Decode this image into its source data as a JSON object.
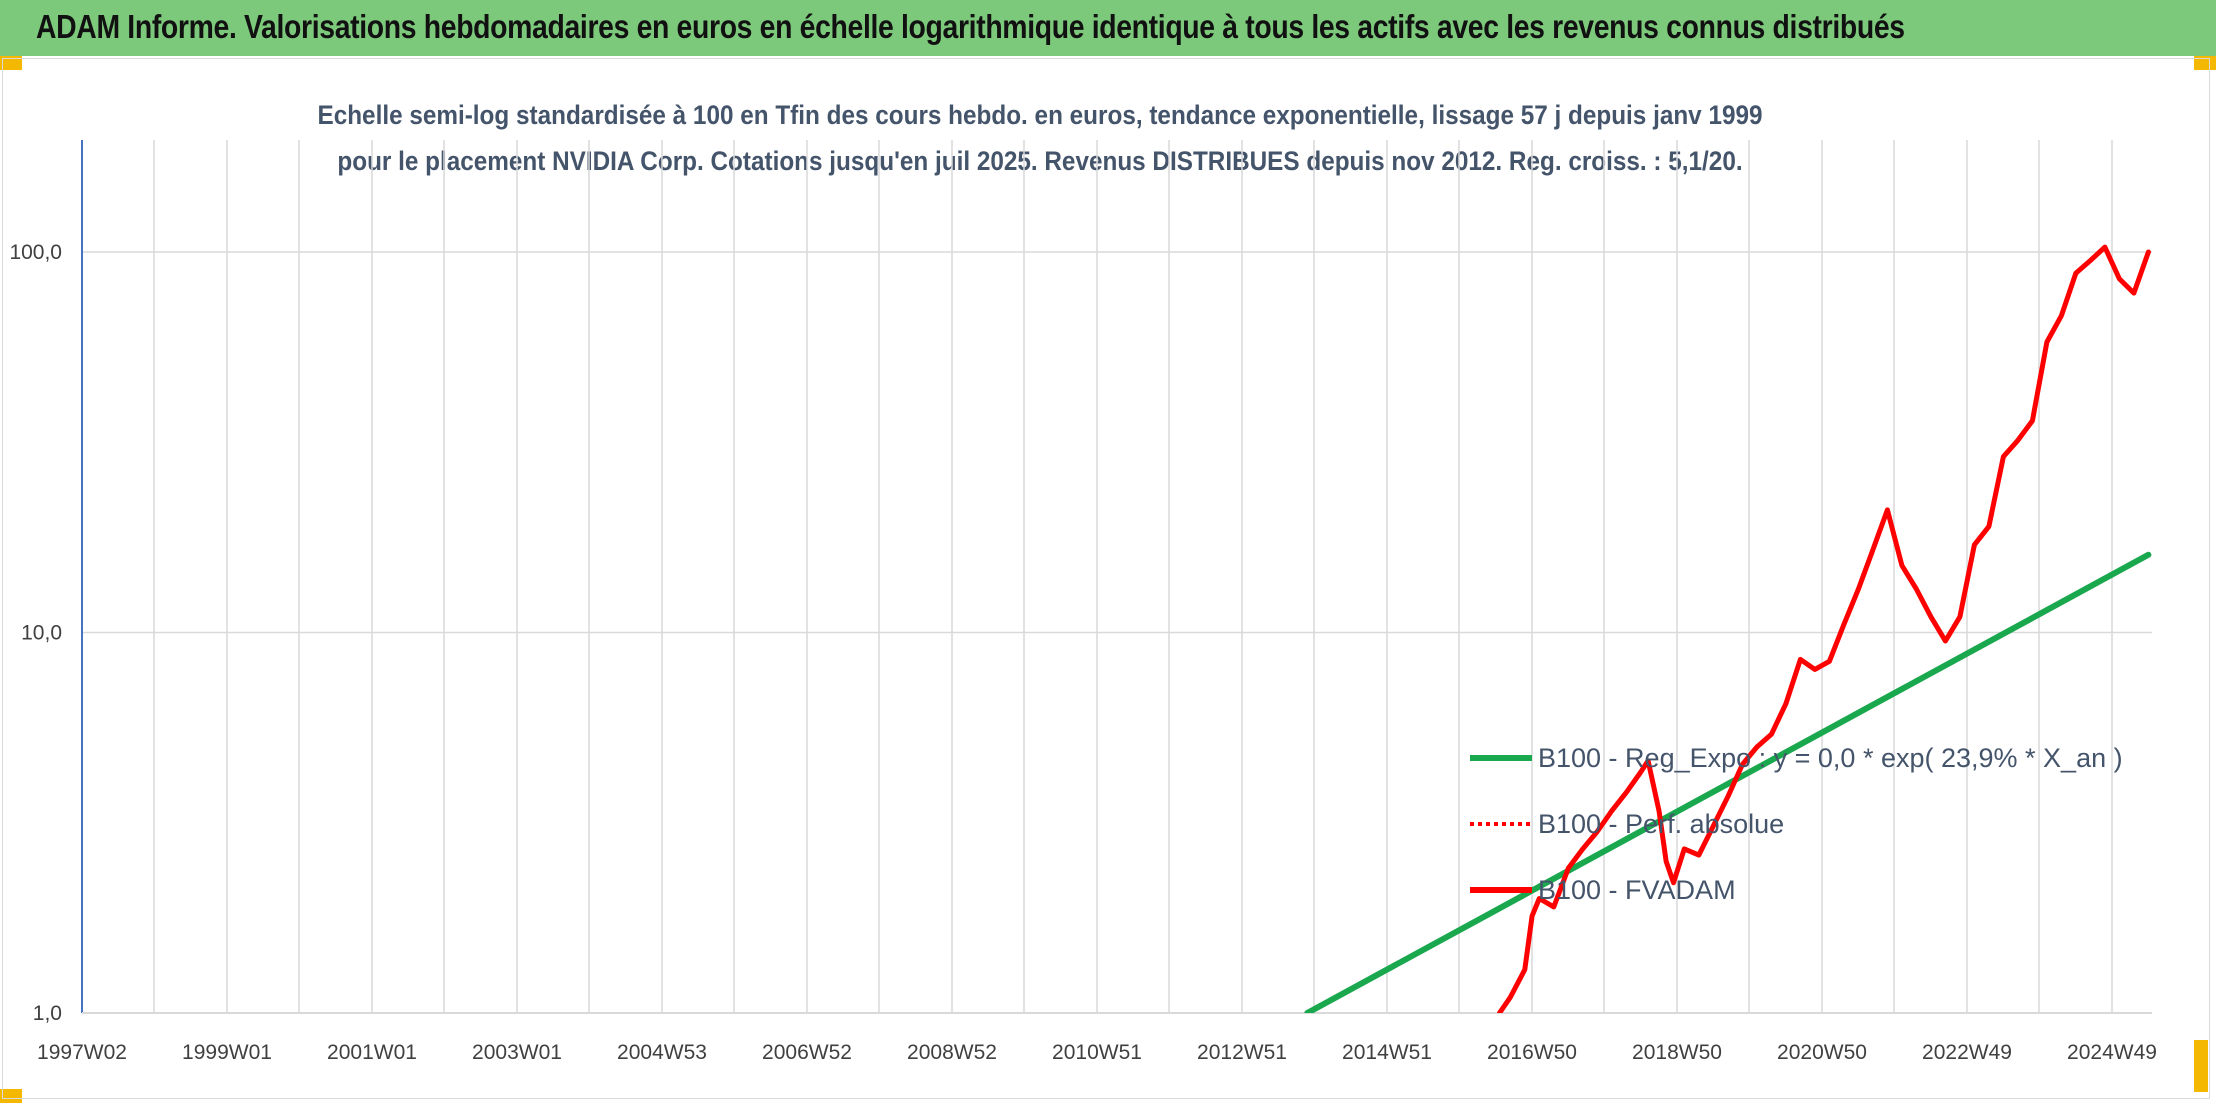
{
  "header": {
    "title": "ADAM Informe. Valorisations hebdomadaires en euros en échelle logarithmique identique à tous les actifs avec les revenus connus distribués"
  },
  "colors": {
    "header_bg": "#7dc97b",
    "corner_accent": "#f5b800",
    "trend_line": "#1aa84f",
    "price_line": "#ff0000",
    "gridline": "#d9d9d9"
  },
  "chart_data": {
    "type": "line",
    "title": "Echelle semi-log standardisée à 100 en Tfin des cours hebdo. en euros, tendance exponentielle, lissage 57 j depuis janv 1999 pour le placement NVIDIA Corp. Cotations jusqu'en juil 2025. Revenus DISTRIBUES depuis nov 2012. Reg. croiss. : 5,1/20.",
    "y_scale": "log",
    "ylim": [
      1,
      100
    ],
    "y_ticks": [
      "1,0",
      "10,0",
      "100,0"
    ],
    "x_ticks": [
      "1997W02",
      "1999W01",
      "2001W01",
      "2003W01",
      "2004W53",
      "2006W52",
      "2008W52",
      "2010W51",
      "2012W51",
      "2014W51",
      "2016W50",
      "2018W50",
      "2020W50",
      "2022W49",
      "2024W49"
    ],
    "grid": true,
    "legend_position": "right",
    "series": [
      {
        "name": "B100 - Reg_Expo : y = 0,0 * exp( 23,9% *  X_an )",
        "style": "solid",
        "color": "#1aa84f",
        "x": [
          2013.9,
          2025.5
        ],
        "y": [
          1.0,
          16.0
        ]
      },
      {
        "name": "B100 - Perf. absolue",
        "style": "dotted",
        "color": "#ff0000",
        "x": [],
        "y": []
      },
      {
        "name": "B100 - FVADAM",
        "style": "solid",
        "color": "#ff0000",
        "x": [
          2016.55,
          2016.7,
          2016.9,
          2017.0,
          2017.1,
          2017.3,
          2017.5,
          2017.7,
          2017.9,
          2018.1,
          2018.3,
          2018.5,
          2018.6,
          2018.75,
          2018.85,
          2018.95,
          2019.1,
          2019.3,
          2019.5,
          2019.7,
          2019.9,
          2020.1,
          2020.3,
          2020.5,
          2020.7,
          2020.9,
          2021.1,
          2021.3,
          2021.5,
          2021.7,
          2021.9,
          2022.1,
          2022.3,
          2022.5,
          2022.7,
          2022.9,
          2023.1,
          2023.3,
          2023.5,
          2023.7,
          2023.9,
          2024.1,
          2024.3,
          2024.5,
          2024.7,
          2024.9,
          2025.1,
          2025.3,
          2025.5
        ],
        "y": [
          1.0,
          1.1,
          1.3,
          1.8,
          2.0,
          1.9,
          2.4,
          2.7,
          3.0,
          3.4,
          3.8,
          4.3,
          4.6,
          3.4,
          2.5,
          2.2,
          2.7,
          2.6,
          3.1,
          3.7,
          4.5,
          5.0,
          5.4,
          6.5,
          8.5,
          8.0,
          8.4,
          10.5,
          13.0,
          16.5,
          21.0,
          15.0,
          13.0,
          11.0,
          9.5,
          11.0,
          17.0,
          19.0,
          29.0,
          32.0,
          36.0,
          58.0,
          68.0,
          88.0,
          95.0,
          103.0,
          85.0,
          78.0,
          100.0
        ]
      }
    ]
  }
}
